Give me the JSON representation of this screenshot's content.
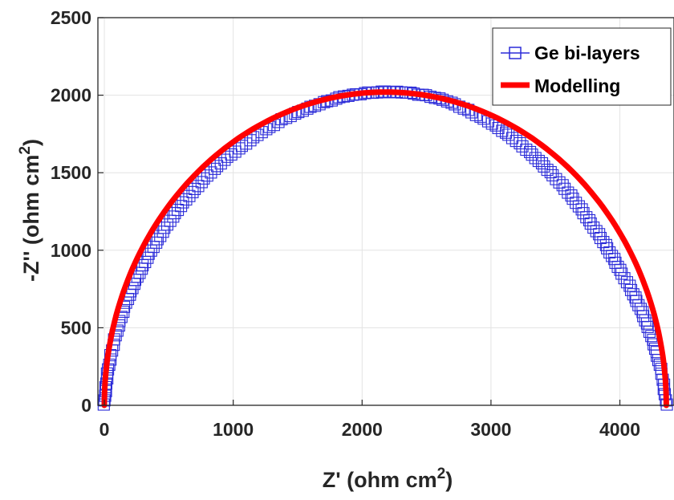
{
  "chart_data": {
    "type": "scatter",
    "xlabel_main": "Z' (ohm cm",
    "xlabel_sup": "2",
    "xlabel_end": ")",
    "ylabel_main": "-Z'' (ohm cm",
    "ylabel_sup": "2",
    "ylabel_end": ")",
    "xlim": [
      -50,
      4420
    ],
    "ylim": [
      0,
      2500
    ],
    "xticks": [
      0,
      1000,
      2000,
      3000,
      4000
    ],
    "yticks": [
      0,
      500,
      1000,
      1500,
      2000,
      2500
    ],
    "grid": true,
    "legend_position": "top-right",
    "series": [
      {
        "name": "Ge bi-layers",
        "style": "square-markers",
        "color": "#2b2bd8",
        "x": [
          0,
          5,
          15,
          30,
          50,
          80,
          120,
          170,
          230,
          300,
          380,
          470,
          570,
          680,
          800,
          930,
          1070,
          1220,
          1380,
          1540,
          1700,
          1860,
          2020,
          2180,
          2340,
          2500,
          2660,
          2820,
          2980,
          3140,
          3300,
          3460,
          3620,
          3760,
          3890,
          4000,
          4090,
          4160,
          4220,
          4265,
          4300,
          4325,
          4340,
          4350,
          4356,
          4360
        ],
        "y": [
          0,
          60,
          140,
          230,
          320,
          420,
          540,
          660,
          780,
          900,
          1020,
          1140,
          1260,
          1370,
          1480,
          1580,
          1670,
          1760,
          1840,
          1900,
          1950,
          1990,
          2010,
          2020,
          2015,
          1995,
          1960,
          1900,
          1830,
          1740,
          1630,
          1500,
          1350,
          1190,
          1030,
          870,
          740,
          620,
          500,
          390,
          290,
          200,
          130,
          70,
          30,
          0
        ]
      },
      {
        "name": "Modelling",
        "style": "line",
        "color": "#ff0000",
        "center": 2180,
        "radius": 2180,
        "ymax": 2020,
        "xstart": 0,
        "xend": 4360
      }
    ]
  }
}
